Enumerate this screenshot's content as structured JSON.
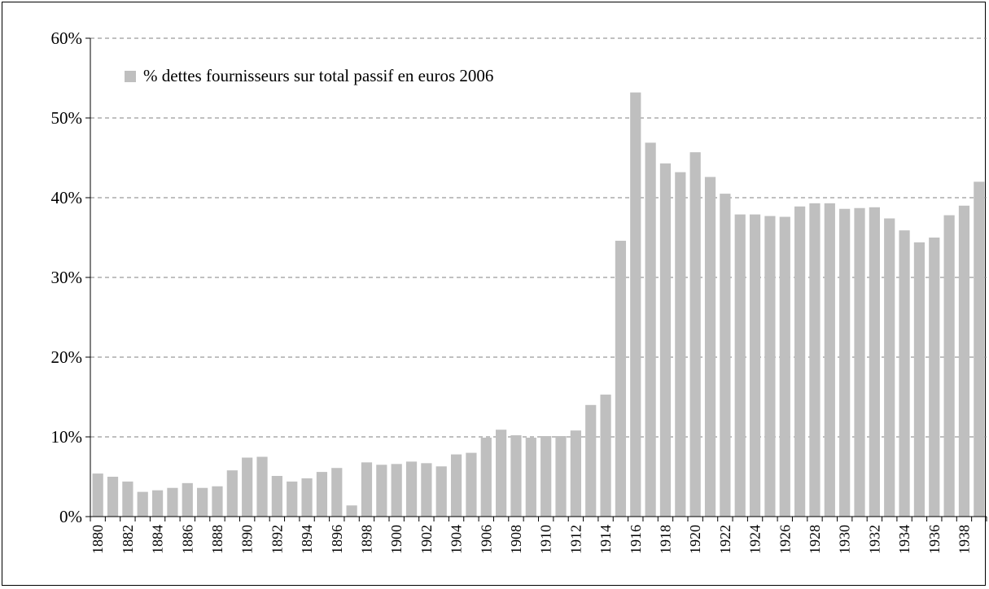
{
  "chart_data": {
    "type": "bar",
    "series": [
      {
        "name": "% dettes fournisseurs sur total passif en euros 2006",
        "color": "#bfbfbf",
        "values": [
          5.4,
          5.0,
          4.4,
          3.1,
          3.3,
          3.6,
          4.2,
          3.6,
          3.8,
          5.8,
          7.4,
          7.5,
          5.1,
          4.4,
          4.8,
          5.6,
          6.1,
          1.4,
          6.8,
          6.5,
          6.6,
          6.9,
          6.7,
          6.3,
          7.8,
          8.0,
          9.9,
          10.9,
          10.2,
          9.9,
          10.1,
          10.1,
          10.8,
          14.0,
          15.3,
          34.6,
          53.2,
          46.9,
          44.3,
          43.2,
          45.7,
          42.6,
          40.5,
          37.9,
          37.9,
          37.7,
          37.6,
          38.9,
          39.3,
          39.3,
          38.6,
          38.7,
          38.8,
          37.4,
          35.9,
          34.4,
          35.0,
          37.8,
          39.0,
          42.0
        ]
      }
    ],
    "categories": [
      "1880",
      "1881",
      "1882",
      "1883",
      "1884",
      "1885",
      "1886",
      "1887",
      "1888",
      "1889",
      "1890",
      "1891",
      "1892",
      "1893",
      "1894",
      "1895",
      "1896",
      "1897",
      "1898",
      "1899",
      "1900",
      "1901",
      "1902",
      "1903",
      "1904",
      "1905",
      "1906",
      "1907",
      "1908",
      "1909",
      "1910",
      "1911",
      "1912",
      "1913",
      "1914",
      "1915",
      "1916",
      "1917",
      "1918",
      "1919",
      "1920",
      "1921",
      "1922",
      "1923",
      "1924",
      "1925",
      "1926",
      "1927",
      "1928",
      "1929",
      "1930",
      "1931",
      "1932",
      "1933",
      "1934",
      "1935",
      "1936",
      "1937",
      "1938",
      "1939"
    ],
    "x_tick_labels": [
      "1880",
      "1882",
      "1884",
      "1886",
      "1888",
      "1890",
      "1892",
      "1894",
      "1896",
      "1898",
      "1900",
      "1902",
      "1904",
      "1906",
      "1908",
      "1910",
      "1912",
      "1914",
      "1916",
      "1918",
      "1920",
      "1922",
      "1924",
      "1926",
      "1928",
      "1930",
      "1932",
      "1934",
      "1936",
      "1938"
    ],
    "y_tick_labels": [
      "0%",
      "10%",
      "20%",
      "30%",
      "40%",
      "50%",
      "60%"
    ],
    "ylim": [
      0,
      60
    ],
    "grid": true,
    "legend_position": "top-left"
  }
}
